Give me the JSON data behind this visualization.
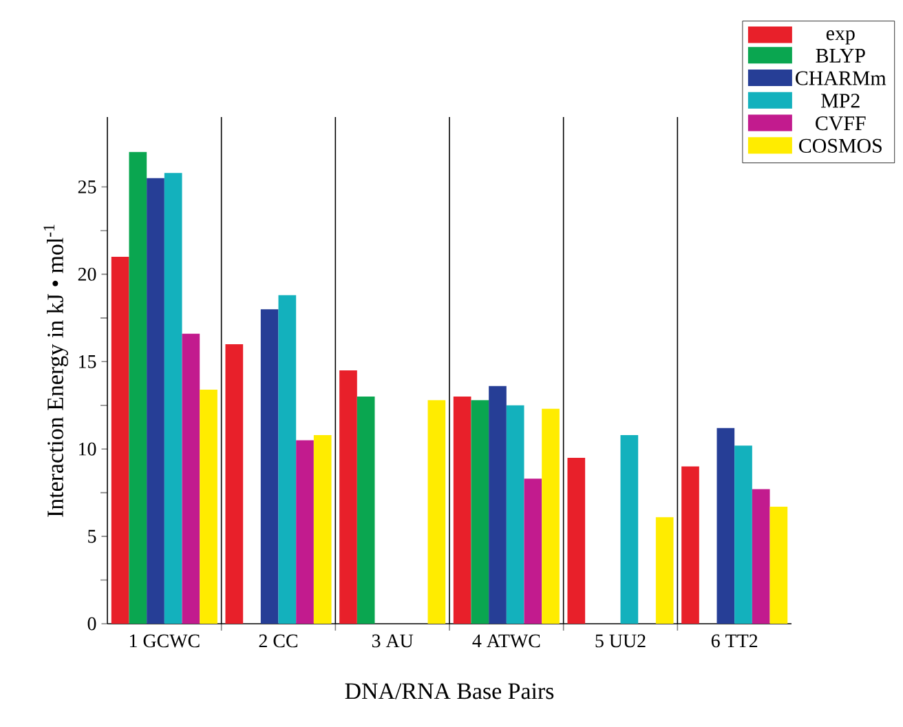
{
  "chart_data": {
    "type": "bar",
    "xlabel": "DNA/RNA Base Pairs",
    "ylabel": "Interaction Energy in kJ • mol$^{-1}$",
    "categories": [
      "1 GCWC",
      "2 CC",
      "3 AU",
      "4 ATWC",
      "5 UU2",
      "6 TT2"
    ],
    "series": [
      {
        "name": "exp",
        "color": "#e8202a",
        "values": [
          21,
          16,
          14.5,
          13,
          9.5,
          9.0
        ]
      },
      {
        "name": "BLYP",
        "color": "#0aa650",
        "values": [
          27,
          null,
          13,
          12.8,
          null,
          null
        ]
      },
      {
        "name": "CHARMm",
        "color": "#263e96",
        "values": [
          25.5,
          18,
          null,
          13.6,
          null,
          11.2
        ]
      },
      {
        "name": "MP2",
        "color": "#13b1bd",
        "values": [
          25.8,
          18.8,
          null,
          12.5,
          10.8,
          10.2
        ]
      },
      {
        "name": "CVFF",
        "color": "#c21b8e",
        "values": [
          16.6,
          10.5,
          null,
          8.3,
          null,
          7.7
        ]
      },
      {
        "name": "COSMOS",
        "color": "#ffec00",
        "values": [
          13.4,
          10.8,
          12.8,
          12.3,
          6.1,
          6.7
        ]
      }
    ],
    "ylim": [
      0,
      29
    ],
    "yticks": [
      0,
      5,
      10,
      15,
      20,
      25
    ],
    "grid": "x",
    "legend": "top right"
  }
}
